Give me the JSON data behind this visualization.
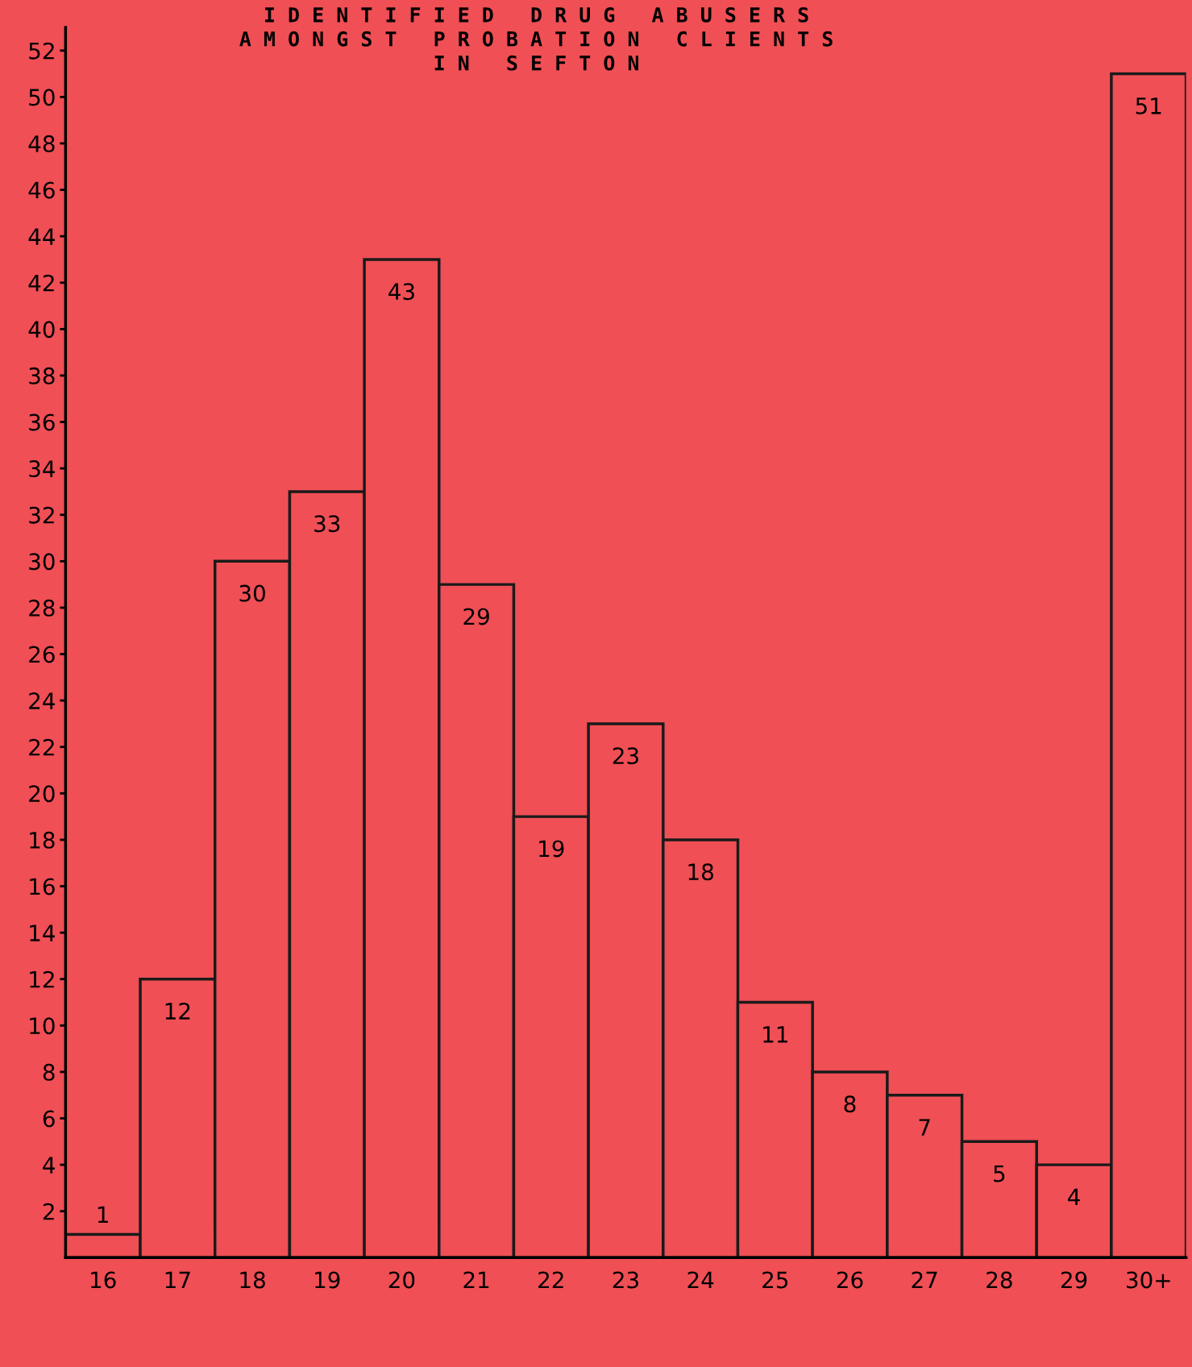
{
  "chart_data": {
    "type": "bar",
    "title": "I D E N T I F I E D   D R U G   A B U S E R S\nA M O N G S T   P R O B A T I O N   C L I E N T S\nI N   S E F T O N",
    "categories": [
      "16",
      "17",
      "18",
      "19",
      "20",
      "21",
      "22",
      "23",
      "24",
      "25",
      "26",
      "27",
      "28",
      "29",
      "30+"
    ],
    "values": [
      1,
      12,
      30,
      33,
      43,
      29,
      19,
      23,
      18,
      11,
      8,
      7,
      5,
      4,
      51
    ],
    "color": "#ef4f55",
    "ylim": [
      0,
      53
    ],
    "yticks": [
      2,
      4,
      6,
      8,
      10,
      12,
      14,
      16,
      18,
      20,
      22,
      24,
      26,
      28,
      30,
      32,
      34,
      36,
      38,
      40,
      42,
      44,
      46,
      48,
      50,
      52
    ],
    "grid": false,
    "legend": false,
    "data_labels": true
  }
}
